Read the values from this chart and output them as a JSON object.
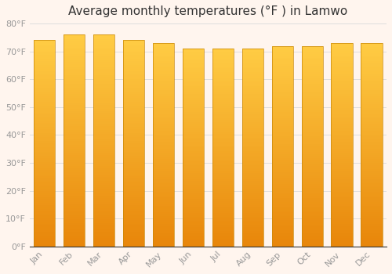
{
  "title": "Average monthly temperatures (°F ) in Lamwo",
  "months": [
    "Jan",
    "Feb",
    "Mar",
    "Apr",
    "May",
    "Jun",
    "Jul",
    "Aug",
    "Sep",
    "Oct",
    "Nov",
    "Dec"
  ],
  "values": [
    74,
    76,
    76,
    74,
    73,
    71,
    71,
    71,
    72,
    72,
    73,
    73
  ],
  "bar_color_bottom": "#E8860A",
  "bar_color_top": "#FFCC44",
  "bar_edge_color": "#C8880A",
  "background_color": "#FFF5EE",
  "plot_bg_color": "#FFF5EE",
  "grid_color": "#DDDDDD",
  "ylim": [
    0,
    80
  ],
  "yticks": [
    0,
    10,
    20,
    30,
    40,
    50,
    60,
    70,
    80
  ],
  "tick_label_color": "#999999",
  "title_color": "#333333",
  "title_fontsize": 11,
  "tick_fontsize": 8,
  "bar_width": 0.72,
  "n_grad": 100
}
